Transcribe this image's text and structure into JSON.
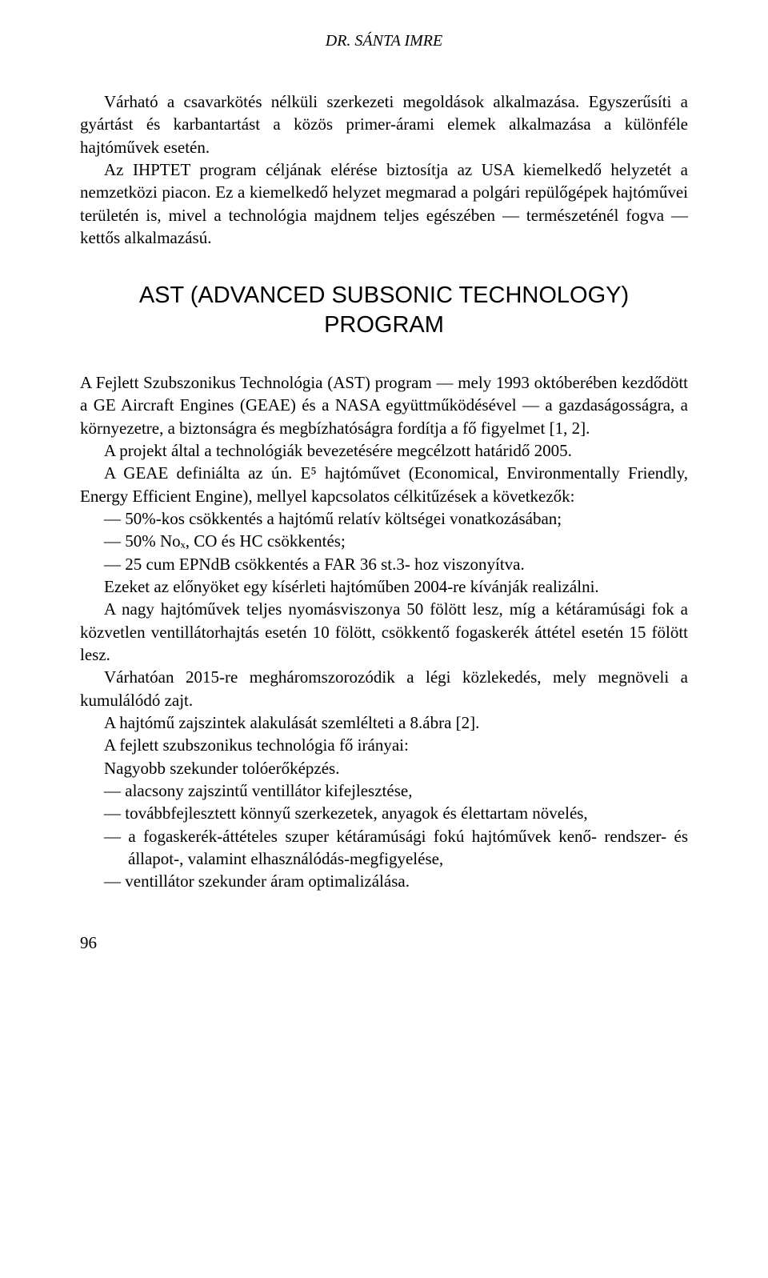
{
  "header": {
    "author": "DR. SÁNTA IMRE"
  },
  "intro": {
    "para1": "Várható a csavarkötés nélküli szerkezeti megoldások alkalmazása. Egyszerűsíti a gyártást és karbantartást a közös primer-árami elemek alkalmazása a különféle hajtóművek esetén.",
    "para2": "Az IHPTET program céljának elérése biztosítja az USA kiemelkedő helyzetét a nemzetközi piacon. Ez a kiemelkedő helyzet megmarad a polgári repülőgépek hajtóművei területén is, mivel a technológia majdnem teljes egészében — természeténél fogva — kettős alkalmazású."
  },
  "section": {
    "title": "AST (ADVANCED SUBSONIC TECHNOLOGY) PROGRAM",
    "para1": "A Fejlett Szubszonikus Technológia (AST) program — mely 1993 októberében kezdődött a GE Aircraft Engines (GEAE) és a NASA együttműködésével — a gazdaságosságra, a környezetre, a biztonságra és megbízhatóságra fordítja a fő figyelmet [1, 2].",
    "para2": "A projekt által a technológiák bevezetésére megcélzott határidő 2005.",
    "para3": "A GEAE definiálta az ún. E⁵ hajtóművet (Economical, Environmentally Friendly, Energy Efficient Engine), mellyel kapcsolatos célkitűzések a következők:",
    "bullet1": "— 50%-kos csökkentés a hajtómű relatív költségei vonatkozásában;",
    "bullet2": "— 50% Noₓ, CO és HC csökkentés;",
    "bullet3": "— 25 cum EPNdB csökkentés a FAR 36 st.3- hoz viszonyítva.",
    "para4": "Ezeket az előnyöket egy kísérleti hajtóműben 2004-re kívánják realizálni.",
    "para5": "A nagy hajtóművek teljes nyomásviszonya 50 fölött lesz, míg a kétáramúsági fok a közvetlen ventillátorhajtás esetén 10 fölött, csökkentő fogaskerék áttétel esetén 15 fölött lesz.",
    "para6": "Várhatóan 2015-re megháromszorozódik a légi közlekedés, mely megnöveli a kumulálódó zajt.",
    "para7": "A hajtómű zajszintek alakulását szemlélteti a 8.ábra [2].",
    "para8": "A fejlett szubszonikus technológia fő irányai:",
    "para9": "Nagyobb szekunder tolóerőképzés.",
    "bullet4": "— alacsony zajszintű ventillátor kifejlesztése,",
    "bullet5": "— továbbfejlesztett könnyű szerkezetek, anyagok és élettartam növelés,",
    "bullet6": "— a fogaskerék-áttételes szuper kétáramúsági fokú hajtóművek kenő- rendszer- és állapot-, valamint elhasználódás-megfigyelése,",
    "bullet7": "— ventillátor szekunder áram optimalizálása."
  },
  "page": {
    "number": "96"
  },
  "style": {
    "background_color": "#ffffff",
    "text_color": "#000000",
    "body_font": "Times New Roman",
    "heading_font": "Arial",
    "body_fontsize": 21,
    "heading_fontsize": 29,
    "header_fontsize": 20
  }
}
